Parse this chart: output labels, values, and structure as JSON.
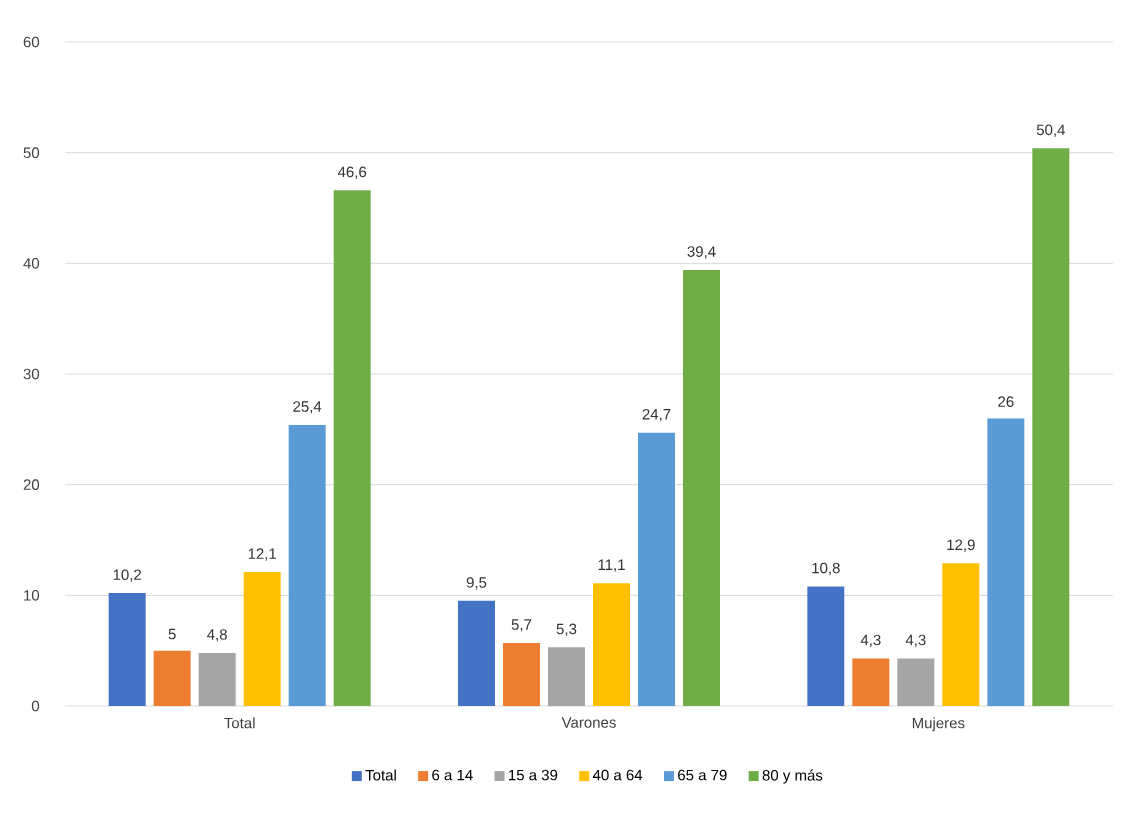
{
  "chart_data": {
    "type": "bar",
    "categories": [
      "Total",
      "Varones",
      "Mujeres"
    ],
    "series": [
      {
        "name": "Total",
        "color": "#4472c4",
        "values": [
          10.2,
          9.5,
          10.8
        ],
        "value_labels": [
          "10,2",
          "9,5",
          "10,8"
        ]
      },
      {
        "name": "6 a 14",
        "color": "#ed7d31",
        "values": [
          5,
          5.7,
          4.3
        ],
        "value_labels": [
          "5",
          "5,7",
          "4,3"
        ]
      },
      {
        "name": "15 a 39",
        "color": "#a5a5a5",
        "values": [
          4.8,
          5.3,
          4.3
        ],
        "value_labels": [
          "4,8",
          "5,3",
          "4,3"
        ]
      },
      {
        "name": "40 a 64",
        "color": "#ffc000",
        "values": [
          12.1,
          11.1,
          12.9
        ],
        "value_labels": [
          "12,1",
          "11,1",
          "12,9"
        ]
      },
      {
        "name": "65 a 79",
        "color": "#5b9bd5",
        "values": [
          25.4,
          24.7,
          26
        ],
        "value_labels": [
          "25,4",
          "24,7",
          "26"
        ]
      },
      {
        "name": "80 y más",
        "color": "#70ad47",
        "values": [
          46.6,
          39.4,
          50.4
        ],
        "value_labels": [
          "46,6",
          "39,4",
          "50,4"
        ]
      }
    ],
    "ylim": [
      0,
      60
    ],
    "yticks": [
      0,
      10,
      20,
      30,
      40,
      50,
      60
    ],
    "grid": "y",
    "legend": "bottom"
  }
}
